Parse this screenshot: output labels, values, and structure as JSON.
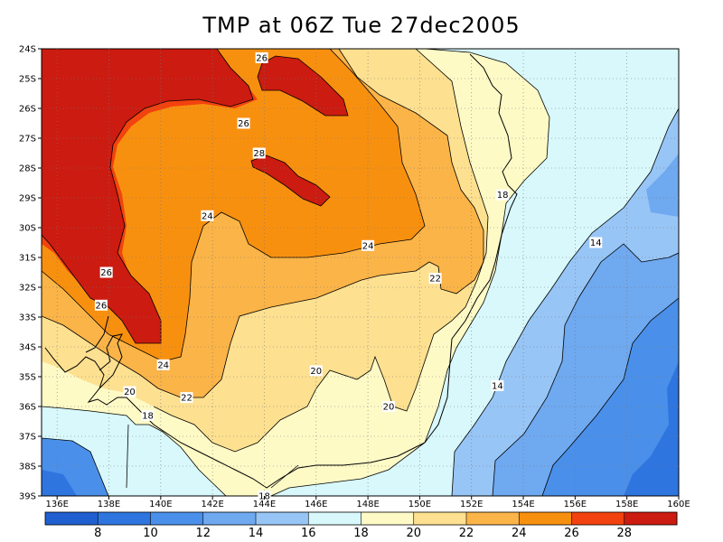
{
  "title": "TMP at 06Z Tue 27dec2005",
  "lat_labels": [
    "24S",
    "25S",
    "26S",
    "27S",
    "28S",
    "29S",
    "30S",
    "31S",
    "32S",
    "33S",
    "34S",
    "35S",
    "36S",
    "37S",
    "38S",
    "39S"
  ],
  "lon_labels": [
    "136E",
    "138E",
    "140E",
    "142E",
    "144E",
    "146E",
    "148E",
    "150E",
    "152E",
    "154E",
    "156E",
    "158E",
    "160E"
  ],
  "contour_labels": [
    {
      "text": "26",
      "lon": 143.9,
      "lat": -24.3
    },
    {
      "text": "26",
      "lon": 143.2,
      "lat": -26.5
    },
    {
      "text": "28",
      "lon": 143.8,
      "lat": -27.5
    },
    {
      "text": "24",
      "lon": 141.8,
      "lat": -29.6
    },
    {
      "text": "24",
      "lon": 148.0,
      "lat": -30.6
    },
    {
      "text": "26",
      "lon": 137.9,
      "lat": -31.5
    },
    {
      "text": "26",
      "lon": 137.7,
      "lat": -32.6
    },
    {
      "text": "22",
      "lon": 150.6,
      "lat": -31.7
    },
    {
      "text": "18",
      "lon": 153.2,
      "lat": -28.9
    },
    {
      "text": "14",
      "lon": 156.8,
      "lat": -30.5
    },
    {
      "text": "24",
      "lon": 140.1,
      "lat": -34.6
    },
    {
      "text": "20",
      "lon": 146.0,
      "lat": -34.8
    },
    {
      "text": "22",
      "lon": 141.0,
      "lat": -35.7
    },
    {
      "text": "20",
      "lon": 138.8,
      "lat": -35.5
    },
    {
      "text": "18",
      "lon": 139.5,
      "lat": -36.3
    },
    {
      "text": "20",
      "lon": 148.8,
      "lat": -36.0
    },
    {
      "text": "14",
      "lon": 153.0,
      "lat": -35.3
    },
    {
      "text": "18",
      "lon": 144.0,
      "lat": -39.0
    }
  ],
  "colorbar": {
    "colors": [
      "#1f5fcf",
      "#2e75e0",
      "#4a90ea",
      "#6fa9f0",
      "#97c5f6",
      "#d8f8fb",
      "#fefac6",
      "#fde090",
      "#fbb448",
      "#f8900f",
      "#f2420f",
      "#cc1b10"
    ],
    "labels": [
      "8",
      "10",
      "12",
      "14",
      "16",
      "18",
      "20",
      "22",
      "24",
      "26",
      "28"
    ]
  },
  "chart_data": {
    "type": "heatmap",
    "title": "TMP at 06Z Tue 27dec2005",
    "variable": "TMP",
    "lon_range": [
      135.4,
      160
    ],
    "lat_range": [
      -39,
      -24
    ],
    "contour_levels": [
      8,
      10,
      12,
      14,
      16,
      18,
      20,
      22,
      24,
      26,
      28
    ],
    "levels_visible": [
      14,
      18,
      20,
      22,
      24,
      26,
      28
    ]
  }
}
